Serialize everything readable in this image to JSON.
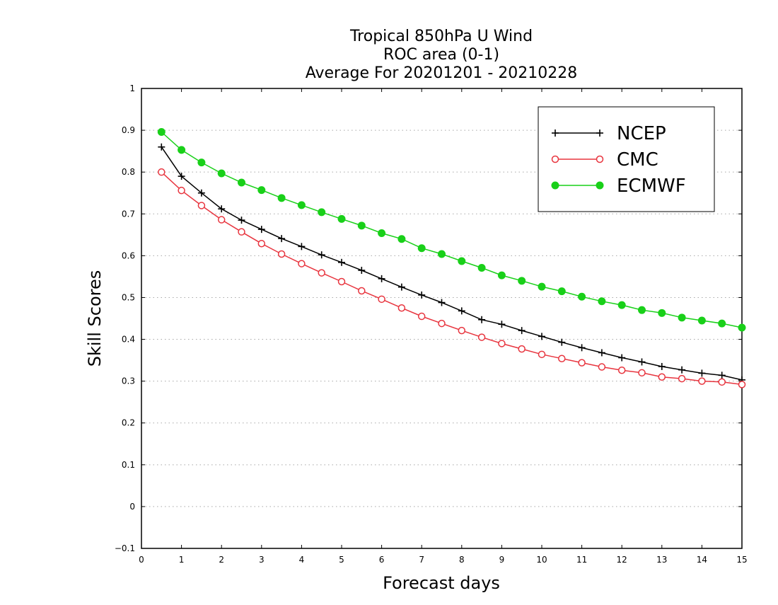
{
  "chart_data": {
    "type": "line",
    "title": [
      "Tropical 850hPa U Wind",
      "ROC area (0-1)",
      "Average For 20201201 - 20210228"
    ],
    "xlabel": "Forecast days",
    "ylabel": "Skill Scores",
    "xlim": [
      0,
      15
    ],
    "ylim": [
      -0.1,
      1
    ],
    "xticks": [
      "0",
      "1",
      "2",
      "3",
      "4",
      "5",
      "6",
      "7",
      "8",
      "9",
      "10",
      "11",
      "12",
      "13",
      "14",
      "15"
    ],
    "yticks": [
      "−0.1",
      "0",
      "0.1",
      "0.2",
      "0.3",
      "0.4",
      "0.5",
      "0.6",
      "0.7",
      "0.8",
      "0.9",
      "1"
    ],
    "grid": true,
    "legend_position": "top-right",
    "x": [
      0.5,
      1,
      1.5,
      2,
      2.5,
      3,
      3.5,
      4,
      4.5,
      5,
      5.5,
      6,
      6.5,
      7,
      7.5,
      8,
      8.5,
      9,
      9.5,
      10,
      10.5,
      11,
      11.5,
      12,
      12.5,
      13,
      13.5,
      14,
      14.5,
      15
    ],
    "series": [
      {
        "name": "NCEP",
        "color": "#000000",
        "marker": "plus",
        "values": [
          0.86,
          0.79,
          0.75,
          0.712,
          0.685,
          0.663,
          0.641,
          0.622,
          0.602,
          0.584,
          0.565,
          0.545,
          0.525,
          0.506,
          0.488,
          0.468,
          0.447,
          0.436,
          0.421,
          0.407,
          0.393,
          0.38,
          0.368,
          0.356,
          0.346,
          0.335,
          0.327,
          0.319,
          0.314,
          0.303
        ]
      },
      {
        "name": "CMC",
        "color": "#e8353f",
        "marker": "open-circle",
        "values": [
          0.8,
          0.756,
          0.72,
          0.686,
          0.657,
          0.629,
          0.604,
          0.581,
          0.559,
          0.538,
          0.516,
          0.496,
          0.475,
          0.455,
          0.438,
          0.421,
          0.405,
          0.39,
          0.377,
          0.364,
          0.354,
          0.344,
          0.334,
          0.326,
          0.32,
          0.31,
          0.306,
          0.3,
          0.298,
          0.292
        ]
      },
      {
        "name": "ECMWF",
        "color": "#19d019",
        "marker": "filled-circle",
        "values": [
          0.896,
          0.853,
          0.823,
          0.797,
          0.775,
          0.757,
          0.738,
          0.721,
          0.704,
          0.688,
          0.672,
          0.654,
          0.64,
          0.618,
          0.604,
          0.587,
          0.571,
          0.553,
          0.54,
          0.526,
          0.515,
          0.502,
          0.491,
          0.482,
          0.47,
          0.463,
          0.452,
          0.445,
          0.438,
          0.428
        ]
      }
    ]
  }
}
